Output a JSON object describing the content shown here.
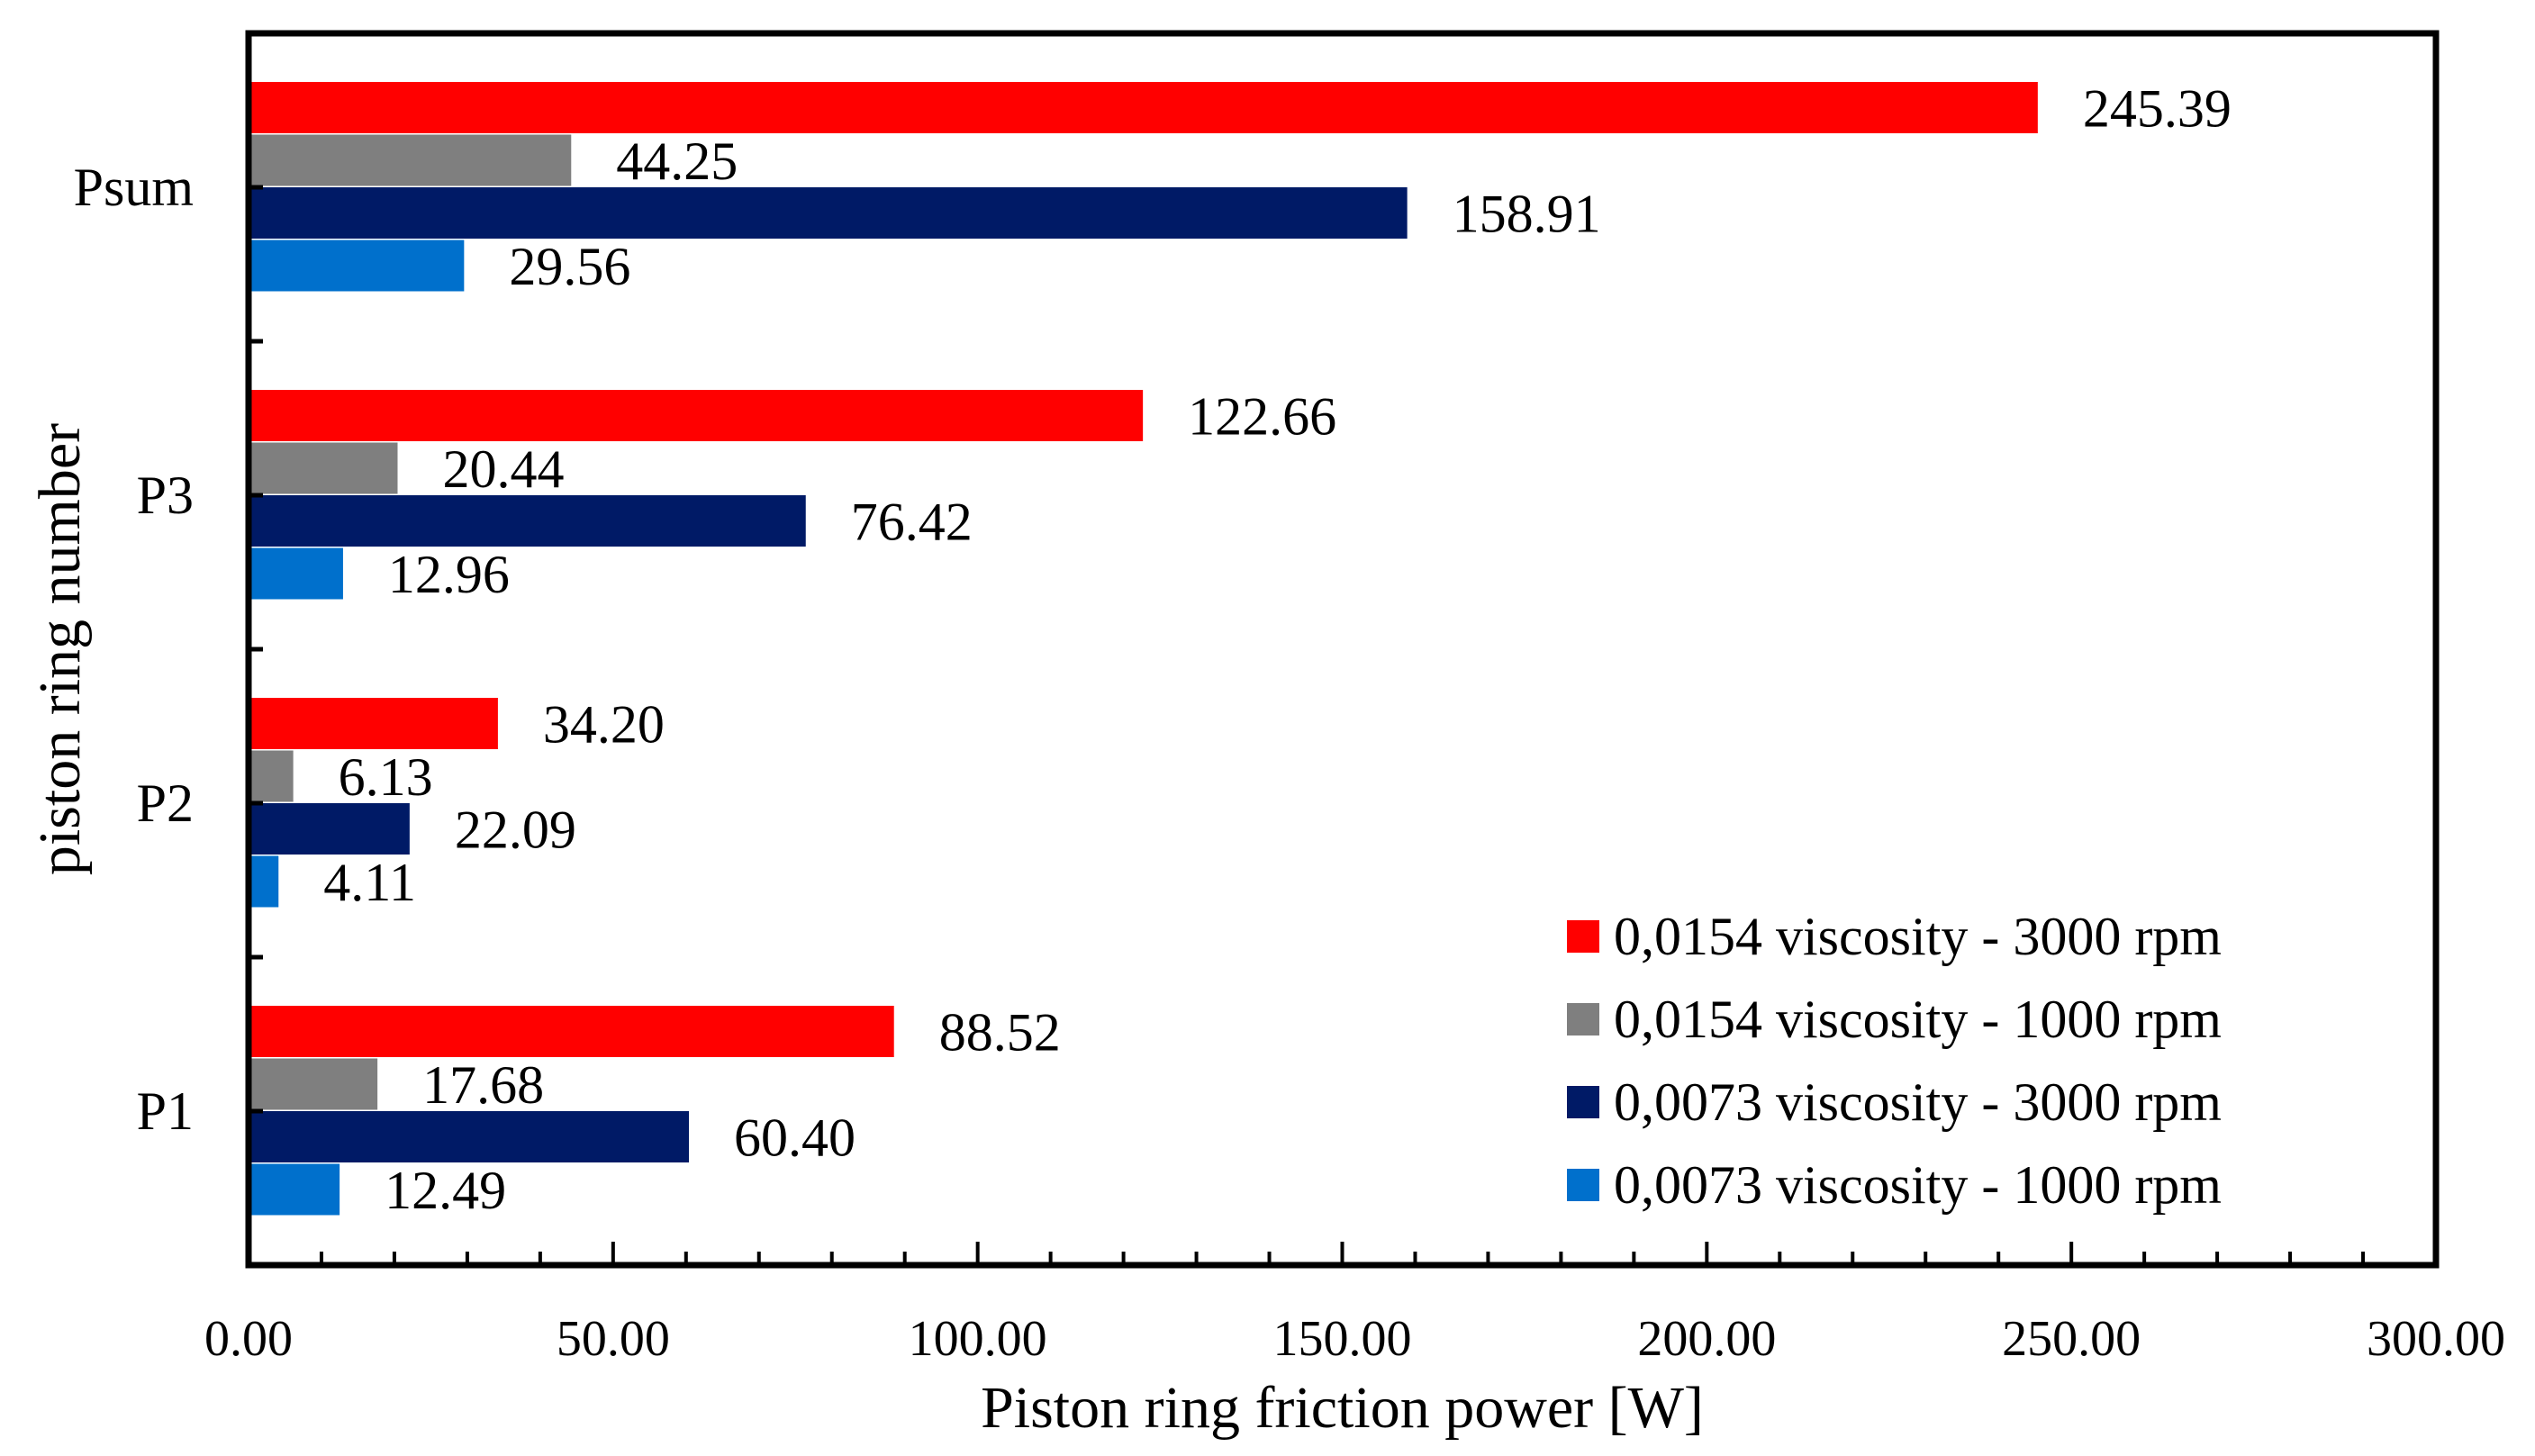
{
  "chart_data": {
    "type": "bar",
    "orientation": "horizontal",
    "xlabel": "Piston ring friction power [W]",
    "ylabel": "piston ring number",
    "xlim": [
      0,
      300
    ],
    "x_major_step": 50,
    "x_minor_step": 10,
    "x_tick_labels": [
      "0.00",
      "50.00",
      "100.00",
      "150.00",
      "200.00",
      "250.00",
      "300.00"
    ],
    "grid": false,
    "legend_position": "bottom-right",
    "categories": [
      "P1",
      "P2",
      "P3",
      "Psum"
    ],
    "series": [
      {
        "name": "0,0154 viscosity - 3000 rpm",
        "color": "#ff0000",
        "values": [
          88.52,
          34.2,
          122.66,
          245.39
        ],
        "labels": [
          "88.52",
          "34.20",
          "122.66",
          "245.39"
        ]
      },
      {
        "name": "0,0154 viscosity - 1000 rpm",
        "color": "#7f7f7f",
        "values": [
          17.68,
          6.13,
          20.44,
          44.25
        ],
        "labels": [
          "17.68",
          "6.13",
          "20.44",
          "44.25"
        ]
      },
      {
        "name": "0,0073 viscosity - 3000 rpm",
        "color": "#001a66",
        "values": [
          60.4,
          22.09,
          76.42,
          158.91
        ],
        "labels": [
          "60.40",
          "22.09",
          "76.42",
          "158.91"
        ]
      },
      {
        "name": "0,0073 viscosity - 1000 rpm",
        "color": "#0070cc",
        "values": [
          12.49,
          4.11,
          12.96,
          29.56
        ],
        "labels": [
          "12.49",
          "4.11",
          "12.96",
          "29.56"
        ]
      }
    ]
  }
}
